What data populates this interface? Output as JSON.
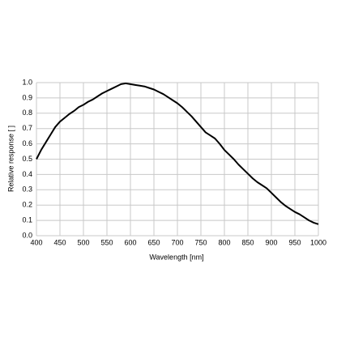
{
  "chart_data": {
    "type": "line",
    "xlabel": "Wavelength [nm]",
    "ylabel": "Relative response [ ]",
    "x": [
      400,
      410,
      420,
      430,
      440,
      450,
      460,
      470,
      480,
      490,
      500,
      510,
      520,
      530,
      540,
      550,
      560,
      570,
      580,
      590,
      600,
      610,
      620,
      630,
      640,
      650,
      660,
      670,
      680,
      690,
      700,
      710,
      720,
      730,
      740,
      750,
      760,
      770,
      780,
      790,
      800,
      810,
      820,
      830,
      840,
      850,
      860,
      870,
      880,
      890,
      900,
      910,
      920,
      930,
      940,
      950,
      960,
      970,
      980,
      990,
      1000
    ],
    "series": [
      {
        "color": "#000000",
        "values": [
          0.5,
          0.56,
          0.61,
          0.66,
          0.71,
          0.745,
          0.77,
          0.795,
          0.815,
          0.84,
          0.855,
          0.875,
          0.89,
          0.91,
          0.93,
          0.945,
          0.96,
          0.975,
          0.99,
          0.995,
          0.99,
          0.985,
          0.98,
          0.975,
          0.965,
          0.955,
          0.94,
          0.925,
          0.905,
          0.885,
          0.865,
          0.84,
          0.81,
          0.78,
          0.745,
          0.71,
          0.675,
          0.655,
          0.635,
          0.6,
          0.56,
          0.53,
          0.5,
          0.465,
          0.435,
          0.405,
          0.375,
          0.35,
          0.33,
          0.31,
          0.28,
          0.25,
          0.22,
          0.195,
          0.175,
          0.155,
          0.14,
          0.12,
          0.1,
          0.085,
          0.075
        ]
      }
    ],
    "xlim": [
      400,
      1000
    ],
    "xticks": [
      400,
      450,
      500,
      550,
      600,
      650,
      700,
      750,
      800,
      850,
      900,
      950,
      1000
    ],
    "ylim": [
      0,
      1
    ],
    "yticks": [
      {
        "value": 0,
        "label": "0.0"
      },
      0.1,
      0.2,
      0.3,
      0.4,
      0.5,
      0.6,
      0.7,
      0.8,
      0.9,
      {
        "value": 1,
        "label": "1.0"
      }
    ],
    "grid": true
  }
}
